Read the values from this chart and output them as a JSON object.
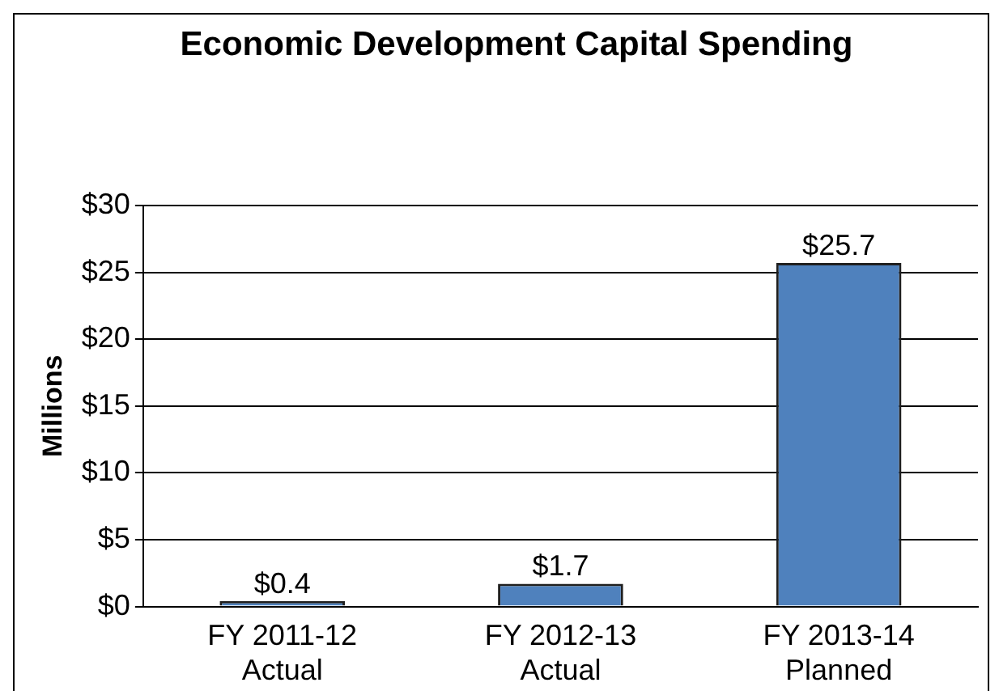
{
  "chart_data": {
    "type": "bar",
    "title": "Economic Development Capital Spending",
    "ylabel": "Millions",
    "categories": [
      "FY 2011-12 Actual",
      "FY 2012-13 Actual",
      "FY 2013-14 Planned"
    ],
    "values": [
      0.4,
      1.7,
      25.7
    ],
    "color": "#4f81bd",
    "value_labels": [
      "$0.4",
      "$1.7",
      "$25.7"
    ],
    "ylim": [
      0,
      30
    ],
    "yticks": [
      {
        "value": 0,
        "label": "$0"
      },
      {
        "value": 5,
        "label": "$5"
      },
      {
        "value": 10,
        "label": "$10"
      },
      {
        "value": 15,
        "label": "$15"
      },
      {
        "value": 20,
        "label": "$20"
      },
      {
        "value": 25,
        "label": "$25"
      },
      {
        "value": 30,
        "label": "$30"
      }
    ],
    "grid": "y",
    "legend": false
  }
}
